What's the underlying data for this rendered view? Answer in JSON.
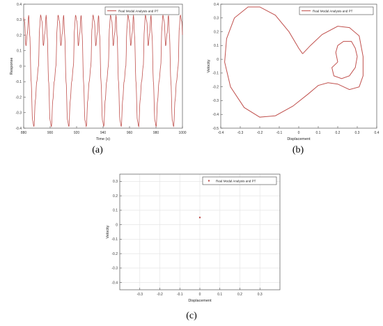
{
  "chart_data": [
    {
      "type": "line",
      "caption": "(a)",
      "xlabel": "Time (s)",
      "ylabel": "Response",
      "xlim": [
        880,
        1000
      ],
      "ylim": [
        -0.4,
        0.4
      ],
      "x_ticks": [
        880,
        900,
        920,
        940,
        960,
        980,
        1000
      ],
      "y_ticks": [
        -0.4,
        -0.3,
        -0.2,
        -0.1,
        0,
        0.1,
        0.2,
        0.3,
        0.4
      ],
      "grid": false,
      "legend_position": "top-right",
      "series": [
        {
          "name": "Real Modal Analysis and PT",
          "color": "#c0504d",
          "period": 13.2,
          "phase": 2,
          "shape_t": [
            0,
            0.06,
            0.12,
            0.2,
            0.28,
            0.36,
            0.44,
            0.5,
            0.58,
            0.66,
            0.74,
            0.82,
            0.9,
            1.0
          ],
          "shape_y": [
            0.0,
            0.24,
            0.33,
            0.29,
            0.13,
            0.21,
            0.33,
            0.2,
            -0.1,
            -0.35,
            -0.39,
            -0.22,
            -0.1,
            0.0
          ]
        }
      ]
    },
    {
      "type": "line",
      "caption": "(b)",
      "xlabel": "Displacement",
      "ylabel": "Velocity",
      "xlim": [
        -0.4,
        0.4
      ],
      "ylim": [
        -0.5,
        0.4
      ],
      "x_ticks": [
        -0.4,
        -0.3,
        -0.2,
        -0.1,
        0,
        0.1,
        0.2,
        0.3,
        0.4
      ],
      "y_ticks": [
        -0.5,
        -0.4,
        -0.3,
        -0.2,
        -0.1,
        0,
        0.1,
        0.2,
        0.3,
        0.4
      ],
      "grid": false,
      "legend_position": "top-right",
      "series": [
        {
          "name": "Real Modal Analysis and PT",
          "color": "#c0504d",
          "points": [
            [
              0.02,
              0.04
            ],
            [
              0.0,
              0.08
            ],
            [
              -0.05,
              0.2
            ],
            [
              -0.12,
              0.32
            ],
            [
              -0.2,
              0.38
            ],
            [
              -0.26,
              0.38
            ],
            [
              -0.33,
              0.3
            ],
            [
              -0.37,
              0.15
            ],
            [
              -0.38,
              -0.02
            ],
            [
              -0.35,
              -0.2
            ],
            [
              -0.28,
              -0.35
            ],
            [
              -0.2,
              -0.42
            ],
            [
              -0.12,
              -0.41
            ],
            [
              -0.03,
              -0.34
            ],
            [
              0.05,
              -0.25
            ],
            [
              0.1,
              -0.19
            ],
            [
              0.15,
              -0.17
            ],
            [
              0.2,
              -0.18
            ],
            [
              0.26,
              -0.22
            ],
            [
              0.31,
              -0.2
            ],
            [
              0.33,
              -0.12
            ],
            [
              0.33,
              0.02
            ],
            [
              0.31,
              0.17
            ],
            [
              0.26,
              0.23
            ],
            [
              0.2,
              0.24
            ],
            [
              0.12,
              0.18
            ],
            [
              0.06,
              0.1
            ],
            [
              0.02,
              0.04
            ]
          ]
        },
        {
          "name": "",
          "color": "#c0504d",
          "points": [
            [
              0.2,
              -0.02
            ],
            [
              0.19,
              0.05
            ],
            [
              0.2,
              0.1
            ],
            [
              0.23,
              0.13
            ],
            [
              0.27,
              0.13
            ],
            [
              0.29,
              0.08
            ],
            [
              0.3,
              0.02
            ],
            [
              0.29,
              -0.06
            ],
            [
              0.26,
              -0.12
            ],
            [
              0.22,
              -0.14
            ],
            [
              0.18,
              -0.12
            ],
            [
              0.17,
              -0.06
            ],
            [
              0.2,
              -0.02
            ]
          ]
        }
      ]
    },
    {
      "type": "scatter",
      "caption": "(c)",
      "xlabel": "Displacement",
      "ylabel": "Velocity",
      "xlim": [
        -0.4,
        0.4
      ],
      "ylim": [
        -0.45,
        0.35
      ],
      "x_ticks": [
        -0.3,
        -0.2,
        -0.1,
        0,
        0.1,
        0.2,
        0.3
      ],
      "y_ticks": [
        -0.4,
        -0.3,
        -0.2,
        -0.1,
        0,
        0.1,
        0.2,
        0.3
      ],
      "grid": true,
      "legend_position": "top-right",
      "series": [
        {
          "name": "Real Modal Analysis and PT",
          "color": "#c0504d",
          "points": [
            [
              0.0,
              0.05
            ]
          ]
        }
      ]
    }
  ]
}
